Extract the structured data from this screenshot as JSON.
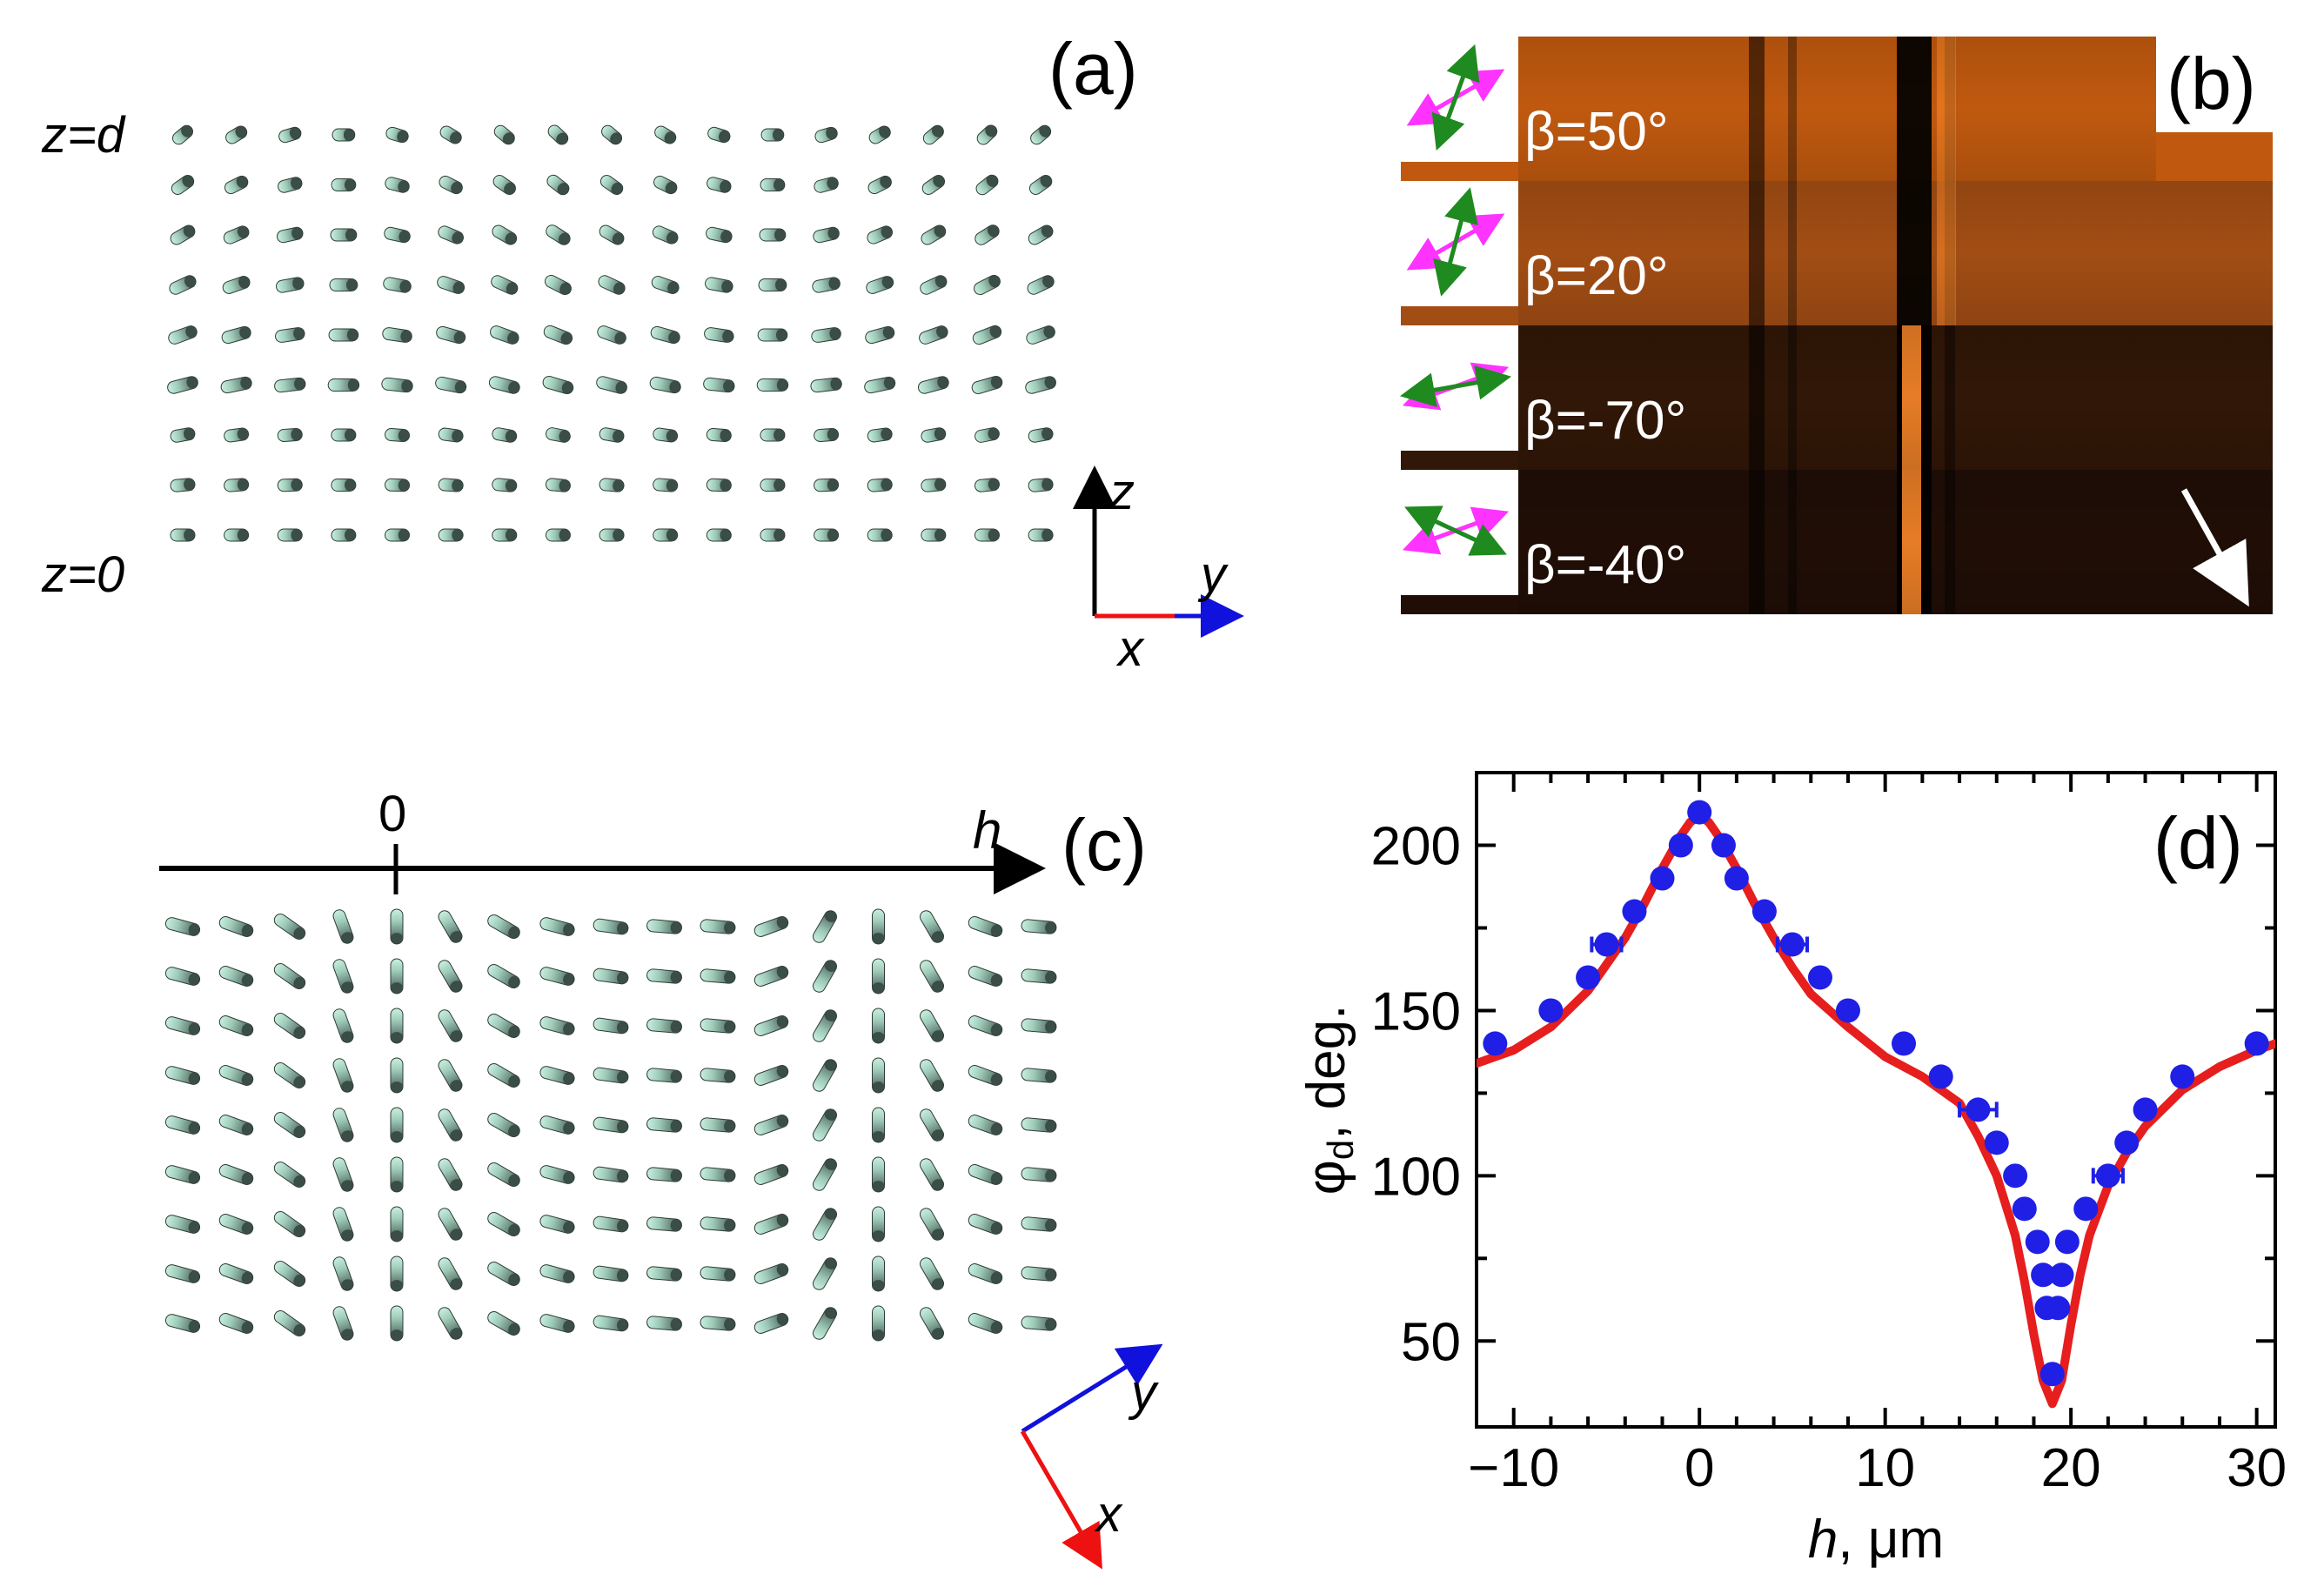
{
  "panels": {
    "a": {
      "label": "(a)",
      "top_label": "z=d",
      "bottom_label": "z=0",
      "axis_z": "z",
      "axis_y": "y",
      "axis_x": "x"
    },
    "b": {
      "label": "(b)",
      "strips": [
        {
          "beta": "β=50°",
          "base_color": "#c0590f"
        },
        {
          "beta": "β=20°",
          "base_color": "#a24d14"
        },
        {
          "beta": "β=-70°",
          "base_color": "#311707"
        },
        {
          "beta": "β=-40°",
          "base_color": "#200e06"
        }
      ],
      "arrow_color": "#ffffff",
      "polarizer_colors": {
        "analyzer": "#ff33ff",
        "polarizer": "#1f8a1f"
      }
    },
    "c": {
      "label": "(c)",
      "h_axis_label": "h",
      "zero_label": "0",
      "axis_y": "y",
      "axis_x": "x"
    },
    "d": {
      "label": "(d)"
    }
  },
  "colors": {
    "rod_light": "#c9f0e0",
    "rod_dark": "#344440",
    "axis_red": "#ee1111",
    "axis_blue": "#1111dd"
  },
  "chart_data": {
    "type": "scatter",
    "title": "",
    "xlabel_italic": "h",
    "xlabel_rest": ", μm",
    "ylabel": "φ",
    "ylabel_sub": "d",
    "ylabel_rest": ", deg.",
    "xlim": [
      -12,
      31
    ],
    "ylim": [
      24,
      222
    ],
    "xticks": [
      -10,
      0,
      10,
      20,
      30
    ],
    "xtick_labels": [
      "−10",
      "0",
      "10",
      "20",
      "30"
    ],
    "yticks": [
      50,
      100,
      150,
      200
    ],
    "grid": false,
    "series": [
      {
        "kind": "points",
        "color": "#1f1fe6",
        "points": [
          {
            "x": -11,
            "y": 140
          },
          {
            "x": -8,
            "y": 150
          },
          {
            "x": -6,
            "y": 160
          },
          {
            "x": -5,
            "y": 170,
            "xerr": 0.8
          },
          {
            "x": -3.5,
            "y": 180
          },
          {
            "x": -2,
            "y": 190
          },
          {
            "x": -1,
            "y": 200
          },
          {
            "x": 0,
            "y": 210
          },
          {
            "x": 1.3,
            "y": 200
          },
          {
            "x": 2,
            "y": 190
          },
          {
            "x": 3.5,
            "y": 180
          },
          {
            "x": 5,
            "y": 170,
            "xerr": 0.8
          },
          {
            "x": 6.5,
            "y": 160
          },
          {
            "x": 8,
            "y": 150
          },
          {
            "x": 11,
            "y": 140
          },
          {
            "x": 13,
            "y": 130
          },
          {
            "x": 15,
            "y": 120,
            "xerr": 1.0
          },
          {
            "x": 16,
            "y": 110
          },
          {
            "x": 17,
            "y": 100
          },
          {
            "x": 17.5,
            "y": 90
          },
          {
            "x": 18.2,
            "y": 80
          },
          {
            "x": 19.8,
            "y": 80
          },
          {
            "x": 18.5,
            "y": 70
          },
          {
            "x": 19.5,
            "y": 70
          },
          {
            "x": 18.7,
            "y": 60
          },
          {
            "x": 19.3,
            "y": 60
          },
          {
            "x": 19,
            "y": 40
          },
          {
            "x": 20.8,
            "y": 90
          },
          {
            "x": 22,
            "y": 100,
            "xerr": 0.8
          },
          {
            "x": 23,
            "y": 110
          },
          {
            "x": 24,
            "y": 120
          },
          {
            "x": 26,
            "y": 130
          },
          {
            "x": 30,
            "y": 140
          }
        ]
      },
      {
        "kind": "line",
        "color": "#e61e1e",
        "x": [
          -12,
          -10,
          -8,
          -6,
          -4,
          -3,
          -2,
          -1,
          -0.5,
          0,
          0.5,
          1,
          2,
          3,
          4,
          5,
          6,
          8,
          10,
          12,
          14,
          15,
          16,
          17,
          17.5,
          18,
          18.5,
          19,
          19.5,
          20,
          20.5,
          21,
          22,
          23,
          24,
          26,
          28,
          30,
          31
        ],
        "y": [
          134,
          138,
          145,
          156,
          172,
          182,
          193,
          203,
          207,
          209,
          207,
          203,
          193,
          182,
          172,
          163,
          155,
          145,
          136,
          130,
          122,
          112,
          100,
          82,
          68,
          52,
          38,
          31,
          38,
          55,
          70,
          82,
          97,
          107,
          115,
          126,
          133,
          138,
          140
        ]
      }
    ]
  }
}
